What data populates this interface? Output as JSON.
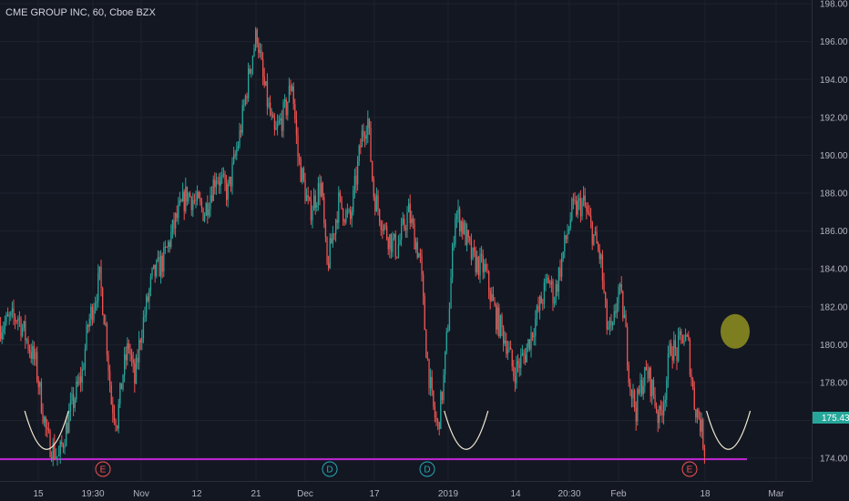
{
  "symbol_title": "CME GROUP INC, 60, Cboe BZX",
  "colors": {
    "background": "#131722",
    "grid": "#1e222d",
    "up": "#26a69a",
    "down": "#ef5350",
    "support_line": "#c026d3",
    "arc": "#f0ead0",
    "circle": "#8a8a1f",
    "price_tag": "#26a69a",
    "earnings_event": "#ef5350",
    "dividend_event": "#26a6b5"
  },
  "chart_data": {
    "type": "candlestick",
    "y_axis": {
      "range": [
        172.8,
        198.2
      ],
      "ticks": [
        "174.00",
        "176.00",
        "178.00",
        "180.00",
        "182.00",
        "184.00",
        "186.00",
        "188.00",
        "190.00",
        "192.00",
        "194.00",
        "196.00",
        "198.00"
      ]
    },
    "x_axis": {
      "ticks": [
        "15",
        "19:30",
        "Nov",
        "12",
        "21",
        "Dec",
        "17",
        "2019",
        "14",
        "20:30",
        "Feb",
        "18",
        "Mar"
      ]
    },
    "last_price": "175.43",
    "support_level": 173.95,
    "price_path": [
      [
        0,
        181.0
      ],
      [
        3,
        181.5
      ],
      [
        6,
        179.0
      ],
      [
        8,
        175.0
      ],
      [
        10,
        174.0
      ],
      [
        12,
        176.5
      ],
      [
        14,
        178.5
      ],
      [
        15,
        181.0
      ],
      [
        17,
        183.5
      ],
      [
        18,
        181.0
      ],
      [
        19,
        177.0
      ],
      [
        20,
        176.0
      ],
      [
        21,
        178.5
      ],
      [
        22,
        180.0
      ],
      [
        23,
        178.0
      ],
      [
        24,
        180.5
      ],
      [
        26,
        183.5
      ],
      [
        28,
        184.5
      ],
      [
        30,
        186.5
      ],
      [
        32,
        188.0
      ],
      [
        35,
        187.0
      ],
      [
        37,
        189.0
      ],
      [
        39,
        188.0
      ],
      [
        41,
        191.0
      ],
      [
        43,
        195.0
      ],
      [
        44,
        196.5
      ],
      [
        45,
        194.0
      ],
      [
        47,
        191.0
      ],
      [
        49,
        192.5
      ],
      [
        50,
        194.0
      ],
      [
        51,
        190.0
      ],
      [
        53,
        187.0
      ],
      [
        55,
        188.5
      ],
      [
        56,
        184.0
      ],
      [
        58,
        187.5
      ],
      [
        60,
        186.5
      ],
      [
        62,
        191.0
      ],
      [
        63,
        192.0
      ],
      [
        64,
        188.0
      ],
      [
        66,
        186.0
      ],
      [
        68,
        185.0
      ],
      [
        70,
        187.0
      ],
      [
        72,
        184.5
      ],
      [
        73,
        180.0
      ],
      [
        74,
        177.0
      ],
      [
        75,
        175.5
      ],
      [
        76,
        178.0
      ],
      [
        77,
        182.0
      ],
      [
        78,
        187.0
      ],
      [
        79,
        186.5
      ],
      [
        81,
        184.5
      ],
      [
        83,
        184.0
      ],
      [
        85,
        181.5
      ],
      [
        87,
        180.0
      ],
      [
        88,
        178.5
      ],
      [
        90,
        179.5
      ],
      [
        92,
        181.5
      ],
      [
        94,
        183.5
      ],
      [
        95,
        182.5
      ],
      [
        97,
        185.5
      ],
      [
        98,
        187.0
      ],
      [
        100,
        187.5
      ],
      [
        101,
        186.5
      ],
      [
        103,
        184.5
      ],
      [
        104,
        181.0
      ],
      [
        105,
        180.5
      ],
      [
        106,
        183.0
      ],
      [
        107,
        181.5
      ],
      [
        108,
        178.0
      ],
      [
        109,
        176.5
      ],
      [
        110,
        178.0
      ],
      [
        111,
        178.5
      ],
      [
        112,
        177.5
      ],
      [
        113,
        176.0
      ],
      [
        114,
        177.5
      ],
      [
        115,
        180.0
      ],
      [
        116,
        179.5
      ],
      [
        117,
        180.5
      ],
      [
        118,
        180.0
      ],
      [
        119,
        177.0
      ],
      [
        120,
        176.0
      ],
      [
        121,
        174.2
      ]
    ],
    "events": [
      {
        "label": "E",
        "kind": "earnings",
        "x_index": 20
      },
      {
        "label": "D",
        "kind": "dividend",
        "x_index": 63
      },
      {
        "label": "D",
        "kind": "dividend",
        "x_index": 82
      },
      {
        "label": "E",
        "kind": "earnings",
        "x_index": 134
      }
    ],
    "arcs_x_index": [
      8,
      80,
      125
    ]
  }
}
